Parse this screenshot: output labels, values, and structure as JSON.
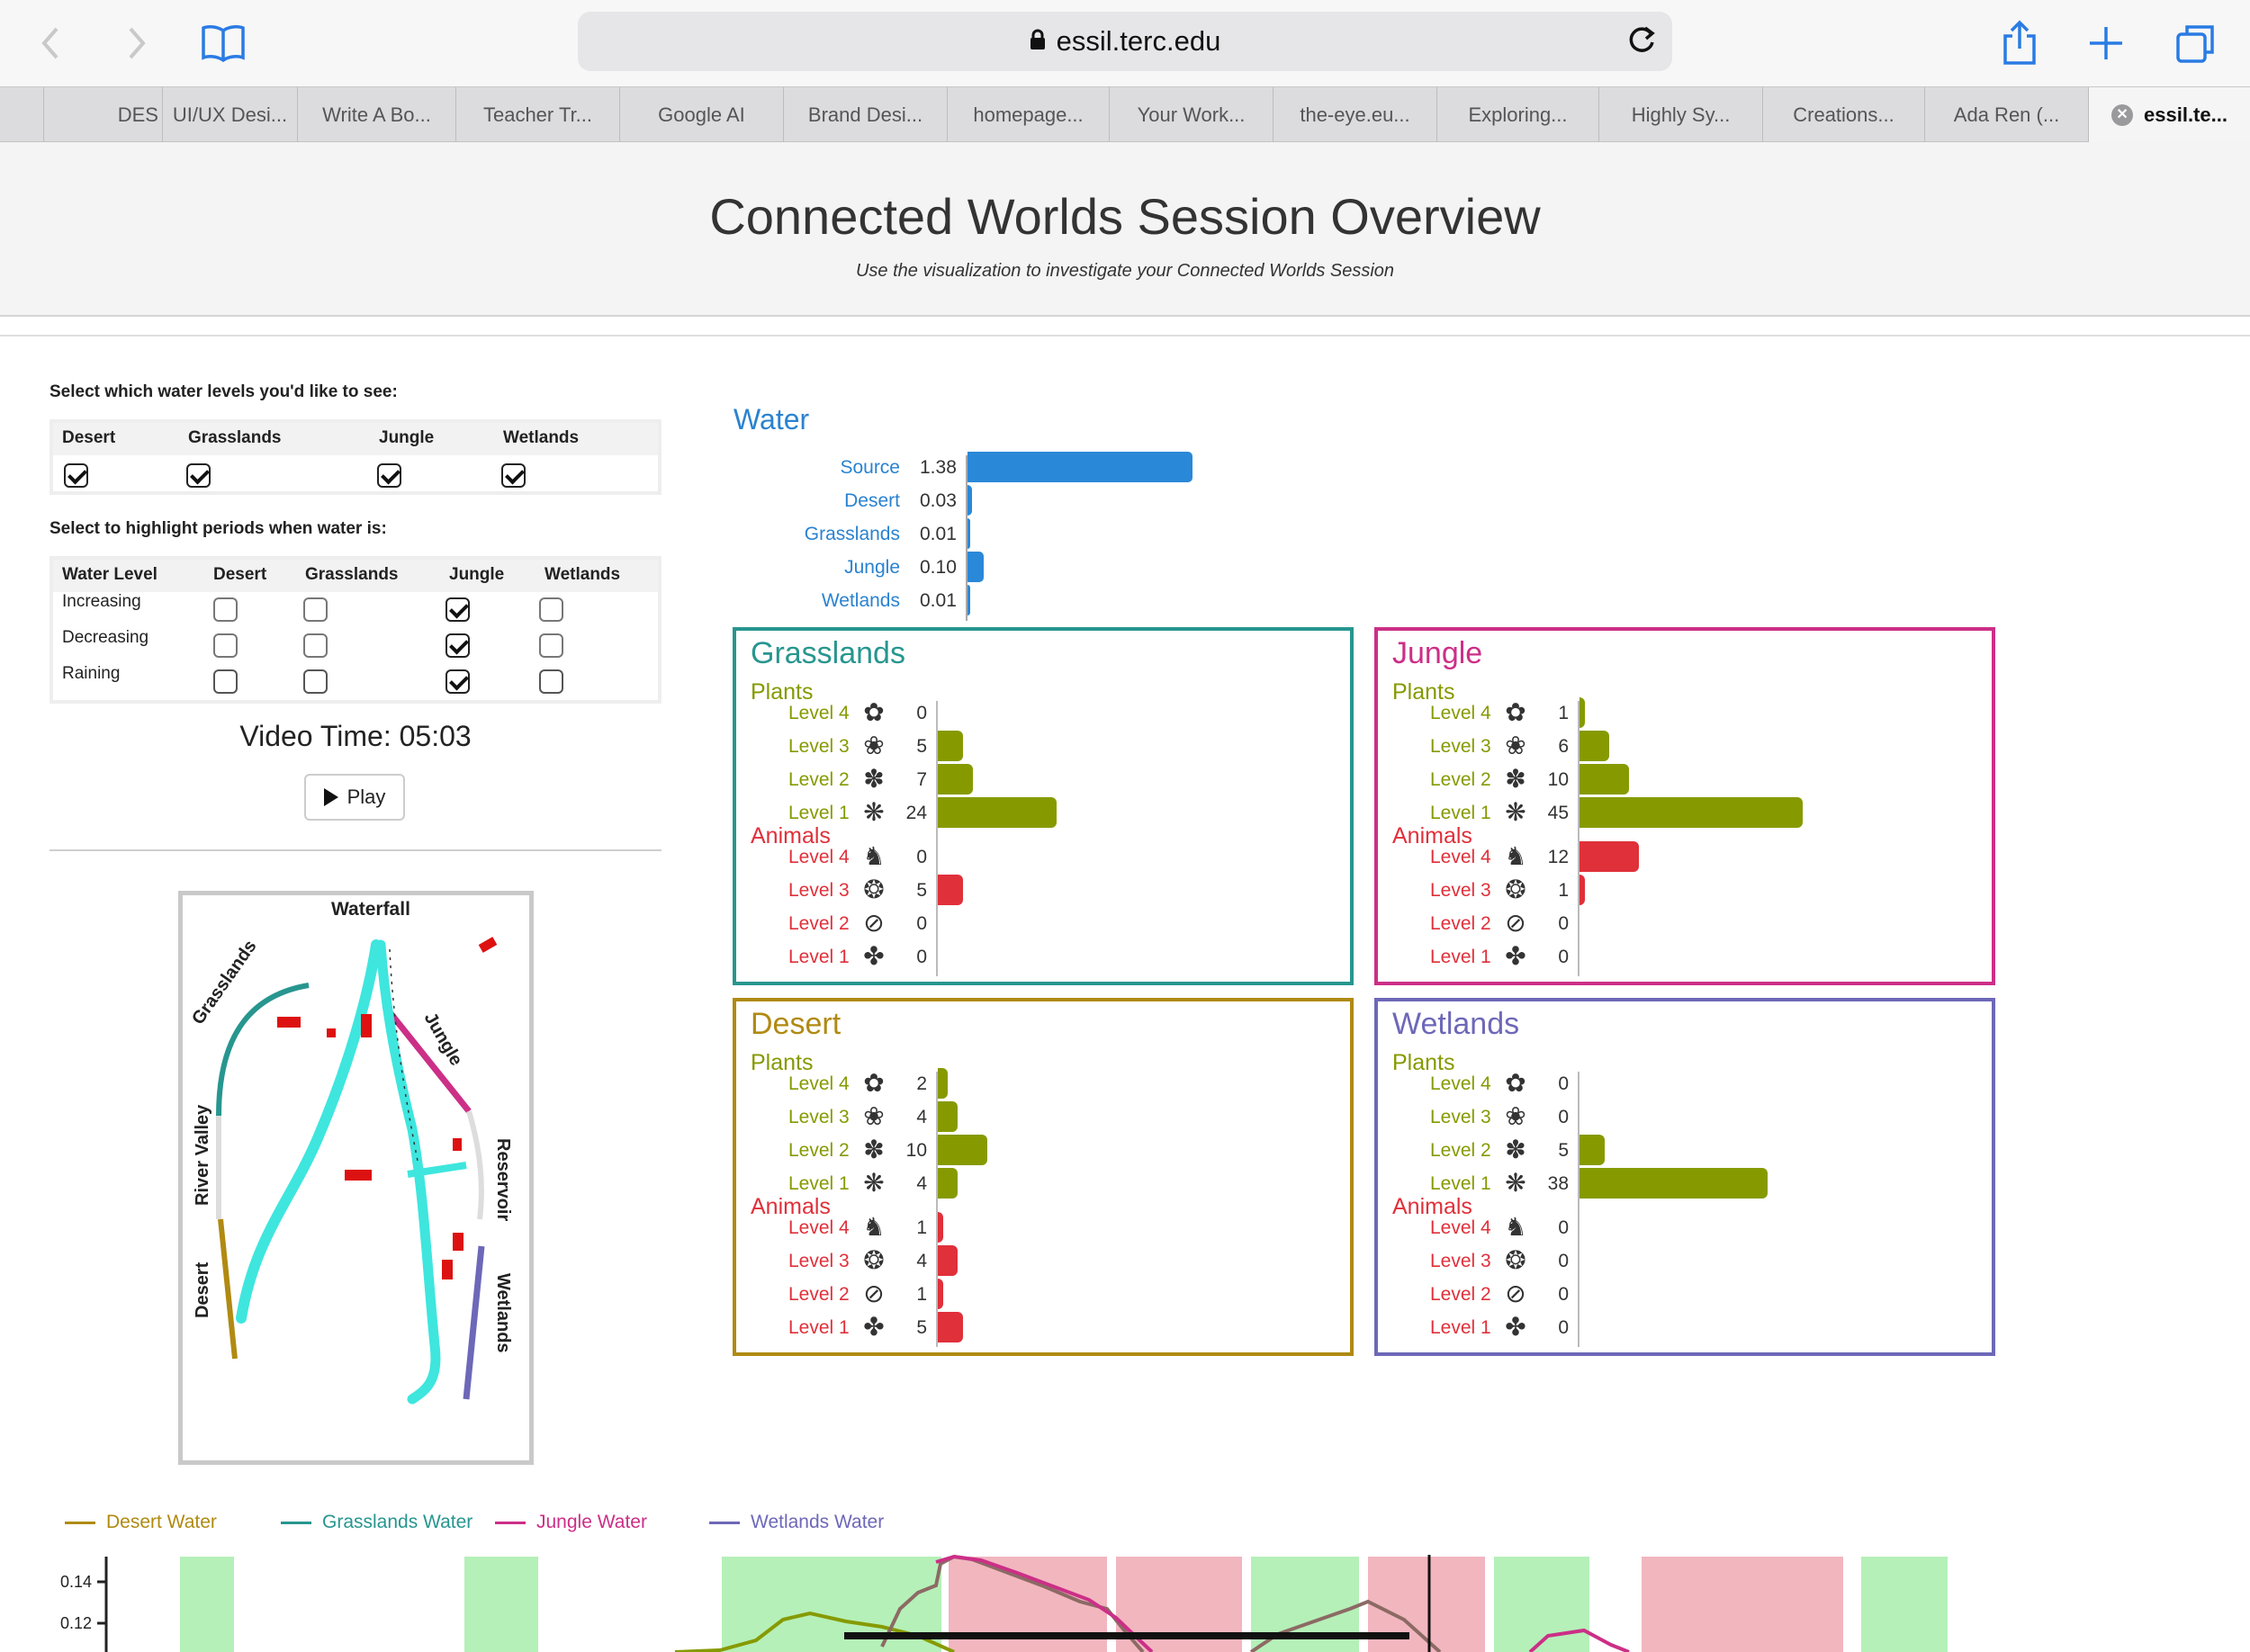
{
  "browser": {
    "url": "essil.terc.edu",
    "tabs": [
      "DES",
      "UI/UX Desi...",
      "Write A Bo...",
      "Teacher Tr...",
      "Google AI",
      "Brand Desi...",
      "homepage...",
      "Your Work...",
      "the-eye.eu...",
      "Exploring...",
      "Highly Sy...",
      "Creations...",
      "Ada Ren (...",
      "essil.te..."
    ],
    "active_tab": "essil.te..."
  },
  "header": {
    "title": "Connected Worlds Session Overview",
    "subtitle": "Use the visualization to investigate your Connected Worlds Session"
  },
  "controls": {
    "water_levels_label": "Select which water levels you'd like to see:",
    "water_levels": [
      {
        "name": "Desert",
        "checked": true
      },
      {
        "name": "Grasslands",
        "checked": true
      },
      {
        "name": "Jungle",
        "checked": true
      },
      {
        "name": "Wetlands",
        "checked": true
      }
    ],
    "highlight_label": "Select to highlight periods when water is:",
    "highlight_headers": [
      "Water Level",
      "Desert",
      "Grasslands",
      "Jungle",
      "Wetlands"
    ],
    "highlight_rows": [
      {
        "label": "Increasing",
        "values": [
          false,
          false,
          true,
          false
        ]
      },
      {
        "label": "Decreasing",
        "values": [
          false,
          false,
          true,
          false
        ]
      },
      {
        "label": "Raining",
        "values": [
          false,
          false,
          true,
          false
        ]
      }
    ],
    "video_time": "Video Time: 05:03",
    "play_label": "Play"
  },
  "map": {
    "labels": [
      "Waterfall",
      "Grasslands",
      "Jungle",
      "River Valley",
      "Reservoir",
      "Desert",
      "Wetlands"
    ]
  },
  "water": {
    "title": "Water",
    "rows": [
      {
        "name": "Source",
        "value": "1.38",
        "v": 1.38
      },
      {
        "name": "Desert",
        "value": "0.03",
        "v": 0.03
      },
      {
        "name": "Grasslands",
        "value": "0.01",
        "v": 0.01
      },
      {
        "name": "Jungle",
        "value": "0.10",
        "v": 0.1
      },
      {
        "name": "Wetlands",
        "value": "0.01",
        "v": 0.01
      }
    ]
  },
  "biomes": {
    "plants_label": "Plants",
    "animals_label": "Animals",
    "level_labels": [
      "Level 4",
      "Level 3",
      "Level 2",
      "Level 1"
    ],
    "plant_color": "#869a00",
    "animal_color": "#e0303a",
    "items": [
      {
        "key": "grasslands",
        "title": "Grasslands",
        "color": "#27968f",
        "plants": [
          0,
          5,
          7,
          24
        ],
        "animals": [
          0,
          5,
          0,
          0
        ]
      },
      {
        "key": "jungle",
        "title": "Jungle",
        "color": "#cc2f87",
        "plants": [
          1,
          6,
          10,
          45
        ],
        "animals": [
          12,
          1,
          0,
          0
        ]
      },
      {
        "key": "desert",
        "title": "Desert",
        "color": "#b08a12",
        "plants": [
          2,
          4,
          10,
          4
        ],
        "animals": [
          1,
          4,
          1,
          5
        ]
      },
      {
        "key": "wetlands",
        "title": "Wetlands",
        "color": "#6d68b8",
        "plants": [
          0,
          0,
          5,
          38
        ],
        "animals": [
          0,
          0,
          0,
          0
        ]
      }
    ]
  },
  "chart_data": {
    "type": "line",
    "series": [
      {
        "name": "Desert Water",
        "color": "#b08a12"
      },
      {
        "name": "Grasslands Water",
        "color": "#27968f"
      },
      {
        "name": "Jungle Water",
        "color": "#cc2f87"
      },
      {
        "name": "Wetlands Water",
        "color": "#6d68b8"
      }
    ],
    "y_ticks": [
      "0.14",
      "0.12"
    ]
  }
}
